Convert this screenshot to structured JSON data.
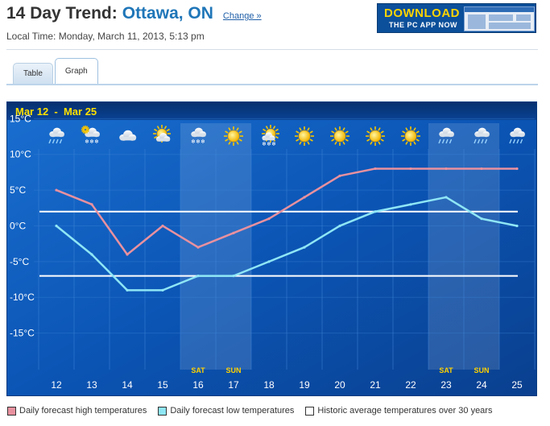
{
  "header": {
    "title": "14 Day Trend:",
    "city": "Ottawa, ON",
    "change_link": "Change »",
    "local_time": "Local Time: Monday, March 11, 2013, 5:13 pm"
  },
  "ad": {
    "line1": "DOWNLOAD",
    "line2": "THE PC APP NOW"
  },
  "tabs": [
    {
      "label": "Table",
      "active": false
    },
    {
      "label": "Graph",
      "active": true
    }
  ],
  "chart_data": {
    "type": "line",
    "title": "Mar 12  -  Mar 25",
    "x": [
      "12",
      "13",
      "14",
      "15",
      "16",
      "17",
      "18",
      "19",
      "20",
      "21",
      "22",
      "23",
      "24",
      "25"
    ],
    "weekend_labels": {
      "16": "SAT",
      "17": "SUN",
      "23": "SAT",
      "24": "SUN"
    },
    "weather_icons": [
      "rain-icon",
      "snow-rain-icon",
      "cloud-icon",
      "sun-cloud-icon",
      "snow-icon",
      "sun-icon",
      "sun-snow-icon",
      "sun-icon",
      "sun-icon",
      "sun-icon",
      "sun-icon",
      "rain-icon",
      "rain-icon",
      "rain-icon"
    ],
    "y_ticks": [
      "15°C",
      "10°C",
      "5°C",
      "0°C",
      "-5°C",
      "-10°C",
      "-15°C"
    ],
    "y_tick_values": [
      15,
      10,
      5,
      0,
      -5,
      -10,
      -15
    ],
    "ylim": [
      -20,
      16.5
    ],
    "series": [
      {
        "name": "Daily forecast high temperatures",
        "color": "#e8919f",
        "values": [
          5,
          3,
          -4,
          0,
          -3,
          -1,
          1,
          4,
          7,
          8,
          8,
          8,
          8,
          8
        ]
      },
      {
        "name": "Daily forecast low temperatures",
        "color": "#8fe6f5",
        "values": [
          0,
          -4,
          -9,
          -9,
          -7,
          -7,
          -5,
          -3,
          0,
          2,
          3,
          4,
          1,
          0
        ]
      }
    ],
    "historic_average": {
      "name": "Historic average temperatures over 30 years",
      "color": "#ffffff",
      "high": 2,
      "low": -7
    },
    "grid": true,
    "legend_position": "bottom"
  },
  "colors": {
    "chart_bg": "#0a4ea8",
    "title_yellow": "#ffe000",
    "axis_text": "#ffffff",
    "weekend_label": "#ffd200"
  }
}
